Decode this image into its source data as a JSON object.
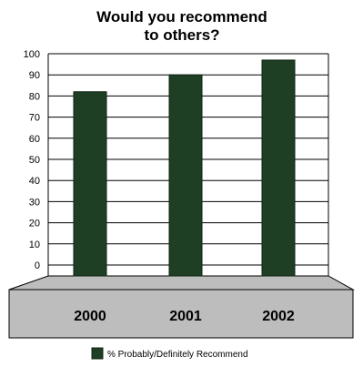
{
  "chart_data": {
    "type": "bar",
    "title_lines": [
      "Would you recommend",
      "to others?"
    ],
    "categories": [
      "2000",
      "2001",
      "2002"
    ],
    "series": [
      {
        "name": "% Probably/Definitely Recommend",
        "values": [
          82,
          90,
          97
        ]
      }
    ],
    "ylim": [
      0,
      100
    ],
    "yticks": [
      0,
      10,
      20,
      30,
      40,
      50,
      60,
      70,
      80,
      90,
      100
    ],
    "grid": true,
    "legend_position": "bottom",
    "colors": {
      "bar": "#1e3f24",
      "bar_edge": "#0f2413",
      "floor_fill": "#bdbdbd",
      "floor_edge": "#000000",
      "grid": "#000000"
    }
  }
}
